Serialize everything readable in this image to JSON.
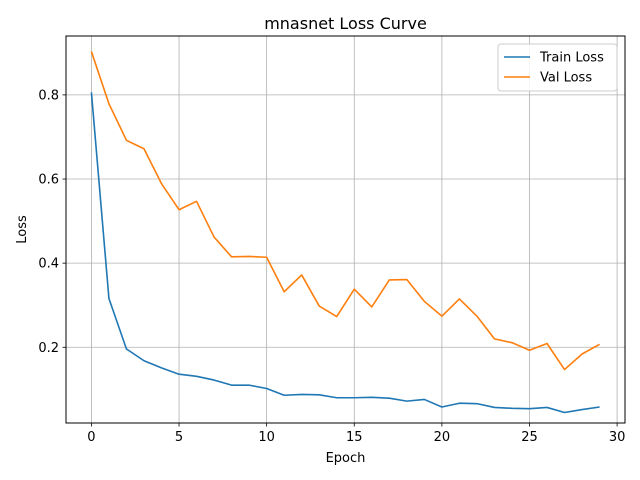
{
  "chart_data": {
    "type": "line",
    "title": "mnasnet Loss Curve",
    "xlabel": "Epoch",
    "ylabel": "Loss",
    "xlim": [
      -1.45,
      30.45
    ],
    "ylim": [
      0.02,
      0.94
    ],
    "xticks": [
      0,
      5,
      10,
      15,
      20,
      25,
      30
    ],
    "yticks": [
      0.2,
      0.4,
      0.6,
      0.8
    ],
    "grid": true,
    "legend_position": "upper right",
    "x": [
      0,
      1,
      2,
      3,
      4,
      5,
      6,
      7,
      8,
      9,
      10,
      11,
      12,
      13,
      14,
      15,
      16,
      17,
      18,
      19,
      20,
      21,
      22,
      23,
      24,
      25,
      26,
      27,
      28,
      29
    ],
    "series": [
      {
        "name": "Train Loss",
        "color": "#1f77b4",
        "values": [
          0.806,
          0.316,
          0.196,
          0.168,
          0.151,
          0.136,
          0.131,
          0.122,
          0.11,
          0.11,
          0.102,
          0.086,
          0.088,
          0.087,
          0.08,
          0.08,
          0.081,
          0.079,
          0.072,
          0.076,
          0.058,
          0.067,
          0.066,
          0.057,
          0.055,
          0.054,
          0.057,
          0.045,
          0.052,
          0.058
        ]
      },
      {
        "name": "Val Loss",
        "color": "#ff7f0e",
        "values": [
          0.903,
          0.779,
          0.692,
          0.672,
          0.589,
          0.527,
          0.547,
          0.462,
          0.415,
          0.416,
          0.414,
          0.332,
          0.372,
          0.298,
          0.273,
          0.338,
          0.296,
          0.36,
          0.361,
          0.309,
          0.274,
          0.315,
          0.274,
          0.22,
          0.211,
          0.193,
          0.209,
          0.147,
          0.184,
          0.207
        ]
      }
    ]
  }
}
